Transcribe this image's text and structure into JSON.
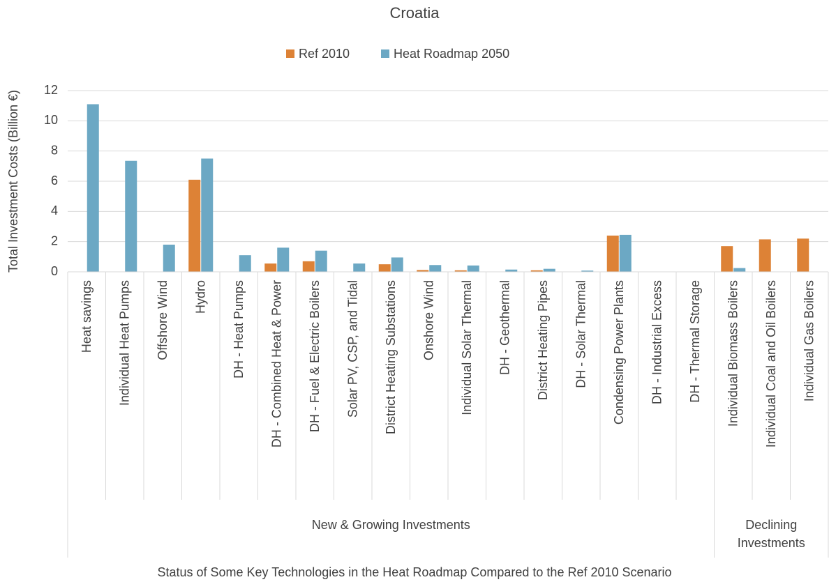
{
  "chart_data": {
    "type": "bar",
    "title": "Croatia",
    "y_axis_label": "Total Investment Costs (Billion €)",
    "x_axis_label": "Status of Some Key Technologies in the Heat Roadmap Compared to the Ref 2010 Scenario",
    "groups": [
      {
        "label": "New & Growing Investments",
        "categories": [
          "Heat savings",
          "Individual Heat Pumps",
          "Offshore Wind",
          "Hydro",
          "DH - Heat Pumps",
          "DH - Combined Heat & Power",
          "DH - Fuel & Electric Boilers",
          "Solar PV, CSP, and Tidal",
          "District Heating Substations",
          "Onshore Wind",
          "Individual Solar Thermal",
          "DH - Geothermal",
          "District Heating Pipes",
          "DH - Solar Thermal",
          "Condensing Power Plants",
          "DH - Industrial Excess",
          "DH - Thermal Storage"
        ]
      },
      {
        "label": "Declining Investments",
        "categories": [
          "Individual Biomass Boilers",
          "Individual Coal and Oil Boilers",
          "Individual Gas Boilers"
        ]
      }
    ],
    "series": [
      {
        "name": "Ref 2010",
        "color": "#dd8236",
        "values": [
          0,
          0,
          0,
          6.1,
          0,
          0.55,
          0.7,
          0,
          0.5,
          0.12,
          0.1,
          0,
          0.1,
          0,
          2.4,
          0,
          0,
          1.7,
          2.15,
          2.2
        ]
      },
      {
        "name": "Heat Roadmap 2050",
        "color": "#6ca8c4",
        "values": [
          11.1,
          7.35,
          1.8,
          7.5,
          1.1,
          1.6,
          1.4,
          0.55,
          0.95,
          0.45,
          0.42,
          0.15,
          0.2,
          0.08,
          2.45,
          0,
          0,
          0.25,
          0,
          0
        ]
      }
    ],
    "ylim": [
      0,
      12
    ],
    "yticks": [
      0,
      2,
      4,
      6,
      8,
      10,
      12
    ],
    "grid": true,
    "legend": "top"
  }
}
